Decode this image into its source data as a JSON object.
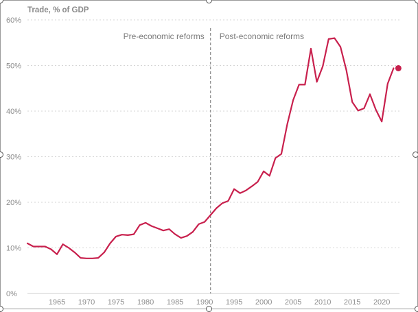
{
  "chart_data": {
    "type": "line",
    "title": "Trade, % of GDP",
    "xlabel": "",
    "ylabel": "",
    "xlim": [
      1960,
      2023
    ],
    "ylim": [
      0,
      60
    ],
    "grid": true,
    "y_ticks": [
      "0%",
      "10%",
      "20%",
      "30%",
      "40%",
      "50%",
      "60%"
    ],
    "x_ticks": [
      "1965",
      "1970",
      "1975",
      "1980",
      "1985",
      "1990",
      "1995",
      "2000",
      "2005",
      "2010",
      "2015",
      "2020"
    ],
    "series": [
      {
        "color": "#c8204d",
        "x": [
          1960,
          1961,
          1962,
          1963,
          1964,
          1965,
          1966,
          1967,
          1968,
          1969,
          1970,
          1971,
          1972,
          1973,
          1974,
          1975,
          1976,
          1977,
          1978,
          1979,
          1980,
          1981,
          1982,
          1983,
          1984,
          1985,
          1986,
          1987,
          1988,
          1989,
          1990,
          1991,
          1992,
          1993,
          1994,
          1995,
          1996,
          1997,
          1998,
          1999,
          2000,
          2001,
          2002,
          2003,
          2004,
          2005,
          2006,
          2007,
          2008,
          2009,
          2010,
          2011,
          2012,
          2013,
          2014,
          2015,
          2016,
          2017,
          2018,
          2019,
          2020,
          2021,
          2022
        ],
        "values": [
          11.0,
          10.3,
          10.3,
          10.3,
          9.7,
          8.6,
          10.8,
          10.0,
          9.0,
          7.8,
          7.7,
          7.7,
          7.8,
          9.0,
          11.0,
          12.5,
          12.9,
          12.8,
          13.0,
          15.0,
          15.5,
          14.8,
          14.3,
          13.8,
          14.1,
          13.0,
          12.2,
          12.6,
          13.5,
          15.2,
          15.7,
          17.2,
          18.7,
          19.8,
          20.3,
          22.9,
          22.0,
          22.6,
          23.5,
          24.5,
          26.8,
          25.8,
          29.7,
          30.6,
          37.1,
          42.4,
          45.8,
          45.8,
          53.7,
          46.4,
          49.8,
          55.8,
          56.0,
          54.1,
          49.0,
          42.0,
          40.1,
          40.6,
          43.7,
          40.3,
          37.7,
          46.0,
          49.4
        ]
      }
    ],
    "annotations": [
      {
        "x": 1991,
        "label_left": "Pre-economic reforms",
        "label_right": "Post-economic reforms"
      }
    ],
    "highlight_point": {
      "x": 2022,
      "y": 49.4
    }
  }
}
